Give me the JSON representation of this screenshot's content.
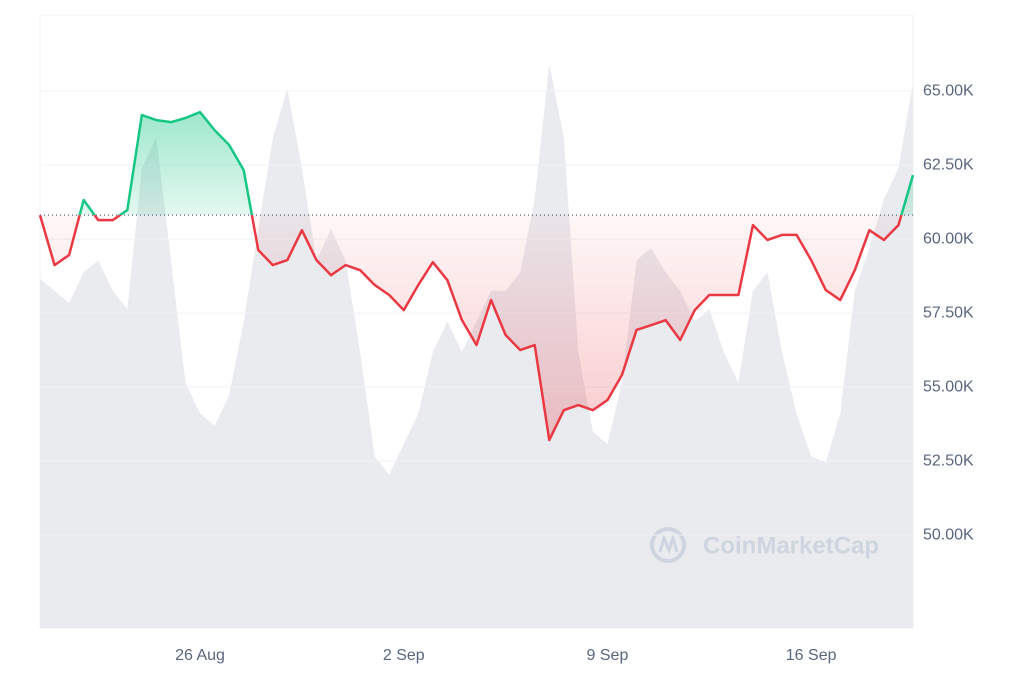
{
  "chart_data": {
    "type": "line",
    "x": [
      0,
      0.5,
      1,
      1.5,
      2,
      2.5,
      3,
      3.5,
      4,
      4.5,
      5,
      5.5,
      6,
      6.5,
      7,
      7.5,
      8,
      8.5,
      9,
      9.5,
      10,
      10.5,
      11,
      11.5,
      12,
      12.5,
      13,
      13.5,
      14,
      14.5,
      15,
      15.5,
      16,
      16.5,
      17,
      17.5,
      18,
      18.5,
      19,
      19.5,
      20,
      20.5,
      21,
      21.5,
      22,
      22.5,
      23,
      23.5,
      24,
      24.5,
      25,
      25.5,
      26,
      26.5,
      27,
      27.5,
      28,
      28.5,
      29,
      29.5,
      30
    ],
    "xlim": [
      0,
      30
    ],
    "xticks": [
      {
        "value": 5.5,
        "label": "26 Aug"
      },
      {
        "value": 12.5,
        "label": "2 Sep"
      },
      {
        "value": 19.5,
        "label": "9 Sep"
      },
      {
        "value": 26.5,
        "label": "16 Sep"
      }
    ],
    "ylim": [
      46860,
      67570
    ],
    "yticks": [
      {
        "value": 50000,
        "label": "50.00K"
      },
      {
        "value": 52500,
        "label": "52.50K"
      },
      {
        "value": 55000,
        "label": "55.00K"
      },
      {
        "value": 57500,
        "label": "57.50K"
      },
      {
        "value": 60000,
        "label": "60.00K"
      },
      {
        "value": 62500,
        "label": "62.50K"
      },
      {
        "value": 65000,
        "label": "65.00K"
      }
    ],
    "series": [
      {
        "up_color": "#16c784",
        "down_color": "#ea3943",
        "values": [
          60810,
          59120,
          59460,
          61320,
          60640,
          60640,
          60980,
          64190,
          64020,
          63950,
          64090,
          64290,
          63680,
          63180,
          62330,
          59630,
          59120,
          59290,
          60300,
          59290,
          58780,
          59120,
          58950,
          58450,
          58110,
          57600,
          58450,
          59220,
          58610,
          57260,
          56420,
          57940,
          56760,
          56250,
          56420,
          53210,
          54220,
          54390,
          54220,
          54560,
          55410,
          56930,
          57090,
          57260,
          56590,
          57600,
          58110,
          58110,
          58110,
          60470,
          59970,
          60140,
          60140,
          59290,
          58280,
          57940,
          58950,
          60300,
          59970,
          60470,
          62160
        ]
      }
    ],
    "volume": {
      "color": "#e9ebef",
      "values": [
        57,
        55,
        53,
        58,
        60,
        55,
        52,
        75,
        80,
        60,
        40,
        35,
        33,
        38,
        50,
        65,
        80,
        88,
        75,
        60,
        65,
        60,
        45,
        28,
        25,
        30,
        35,
        45,
        50,
        45,
        50,
        55,
        55,
        58,
        70,
        92,
        80,
        45,
        32,
        30,
        40,
        60,
        62,
        58,
        55,
        50,
        52,
        45,
        40,
        55,
        58,
        45,
        35,
        28,
        27,
        35,
        55,
        62,
        70,
        75,
        89
      ]
    },
    "y2lim": [
      0,
      100
    ],
    "grid": true,
    "watermark": "CoinMarketCap"
  }
}
